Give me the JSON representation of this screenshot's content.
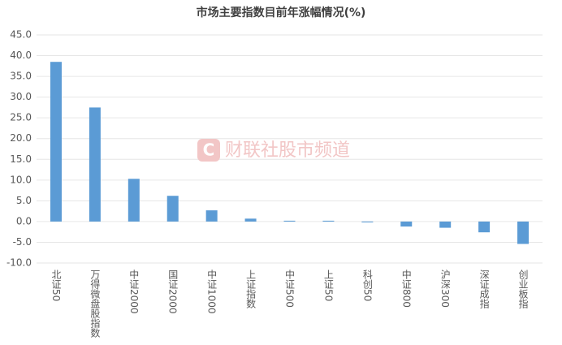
{
  "chart_data": {
    "type": "bar",
    "title": "市场主要指数目前年涨幅情况(%)",
    "watermark": "财联社股市频道",
    "categories": [
      "北证50",
      "万得微盘股指数",
      "中证2000",
      "国证2000",
      "中证1000",
      "上证指数",
      "中证500",
      "上证50",
      "科创50",
      "中证800",
      "沪深300",
      "深证成指",
      "创业板指"
    ],
    "values": [
      38.5,
      27.5,
      10.3,
      6.2,
      2.7,
      0.7,
      0.2,
      0.2,
      -0.2,
      -1.2,
      -1.5,
      -2.6,
      -5.4
    ],
    "color": "#5b9bd5",
    "ylim": [
      -10,
      45
    ],
    "yticks": [
      {
        "value": -10,
        "label": "-10.0"
      },
      {
        "value": -5,
        "label": "-5.0"
      },
      {
        "value": 0,
        "label": "0.0"
      },
      {
        "value": 5,
        "label": "5.0"
      },
      {
        "value": 10,
        "label": "10.0"
      },
      {
        "value": 15,
        "label": "15.0"
      },
      {
        "value": 20,
        "label": "20.0"
      },
      {
        "value": 25,
        "label": "25.0"
      },
      {
        "value": 30,
        "label": "30.0"
      },
      {
        "value": 35,
        "label": "35.0"
      },
      {
        "value": 40,
        "label": "40.0"
      },
      {
        "value": 45,
        "label": "45.0"
      }
    ],
    "grid": true
  }
}
